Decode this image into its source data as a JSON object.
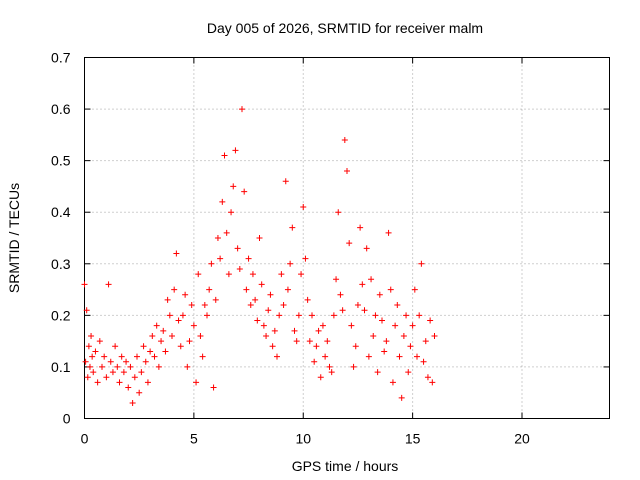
{
  "chart_data": {
    "type": "scatter",
    "title": "Day 005 of 2026, SRMTID for receiver malm",
    "xlabel": "GPS time / hours",
    "ylabel": "SRMTID / TECUs",
    "xlim": [
      0,
      24
    ],
    "ylim": [
      0,
      0.7
    ],
    "xticks": [
      0,
      5,
      10,
      15,
      20
    ],
    "xtick_labels": [
      "0",
      "5",
      "10",
      "15",
      "20"
    ],
    "yticks": [
      0,
      0.1,
      0.2,
      0.3,
      0.4,
      0.5,
      0.6,
      0.7
    ],
    "ytick_labels": [
      "0",
      "0.1",
      "0.2",
      "0.3",
      "0.4",
      "0.5",
      "0.6",
      "0.7"
    ],
    "grid": true,
    "marker": "+",
    "marker_color": "#ff0000",
    "series": [
      {
        "name": "SRMTID",
        "x": [
          0.0,
          0.05,
          0.1,
          0.15,
          0.2,
          0.25,
          0.3,
          0.35,
          0.4,
          0.5,
          0.6,
          0.7,
          0.8,
          0.9,
          1.0,
          1.1,
          1.2,
          1.3,
          1.4,
          1.5,
          1.6,
          1.7,
          1.8,
          1.9,
          2.0,
          2.1,
          2.2,
          2.3,
          2.4,
          2.5,
          2.6,
          2.7,
          2.8,
          2.9,
          3.0,
          3.1,
          3.2,
          3.3,
          3.4,
          3.5,
          3.6,
          3.7,
          3.8,
          3.9,
          4.0,
          4.1,
          4.2,
          4.3,
          4.4,
          4.5,
          4.6,
          4.7,
          4.8,
          4.9,
          5.0,
          5.1,
          5.2,
          5.3,
          5.4,
          5.5,
          5.6,
          5.7,
          5.8,
          5.9,
          6.0,
          6.1,
          6.2,
          6.3,
          6.4,
          6.5,
          6.6,
          6.7,
          6.8,
          6.9,
          7.0,
          7.1,
          7.2,
          7.3,
          7.4,
          7.5,
          7.6,
          7.7,
          7.8,
          7.9,
          8.0,
          8.1,
          8.2,
          8.3,
          8.4,
          8.5,
          8.6,
          8.7,
          8.8,
          8.9,
          9.0,
          9.1,
          9.2,
          9.3,
          9.4,
          9.5,
          9.6,
          9.7,
          9.8,
          9.9,
          10.0,
          10.1,
          10.2,
          10.3,
          10.4,
          10.5,
          10.6,
          10.7,
          10.8,
          10.9,
          11.0,
          11.1,
          11.2,
          11.3,
          11.4,
          11.5,
          11.6,
          11.7,
          11.8,
          11.9,
          12.0,
          12.1,
          12.2,
          12.3,
          12.4,
          12.5,
          12.6,
          12.7,
          12.8,
          12.9,
          13.0,
          13.1,
          13.2,
          13.3,
          13.4,
          13.5,
          13.6,
          13.7,
          13.8,
          13.9,
          14.0,
          14.1,
          14.2,
          14.3,
          14.4,
          14.5,
          14.6,
          14.7,
          14.8,
          14.9,
          15.0,
          15.1,
          15.2,
          15.3,
          15.4,
          15.5,
          15.6,
          15.7,
          15.8,
          15.9,
          16.0
        ],
        "y": [
          0.26,
          0.11,
          0.21,
          0.08,
          0.14,
          0.1,
          0.16,
          0.12,
          0.09,
          0.13,
          0.07,
          0.15,
          0.1,
          0.12,
          0.08,
          0.26,
          0.11,
          0.09,
          0.14,
          0.1,
          0.07,
          0.12,
          0.09,
          0.11,
          0.06,
          0.1,
          0.03,
          0.08,
          0.12,
          0.05,
          0.09,
          0.14,
          0.11,
          0.07,
          0.13,
          0.16,
          0.12,
          0.18,
          0.1,
          0.15,
          0.17,
          0.13,
          0.23,
          0.2,
          0.16,
          0.25,
          0.32,
          0.19,
          0.14,
          0.2,
          0.24,
          0.1,
          0.15,
          0.22,
          0.18,
          0.07,
          0.28,
          0.16,
          0.12,
          0.22,
          0.2,
          0.25,
          0.3,
          0.06,
          0.23,
          0.35,
          0.31,
          0.42,
          0.51,
          0.36,
          0.28,
          0.4,
          0.45,
          0.52,
          0.33,
          0.29,
          0.6,
          0.44,
          0.25,
          0.31,
          0.22,
          0.28,
          0.23,
          0.19,
          0.35,
          0.26,
          0.18,
          0.16,
          0.21,
          0.24,
          0.14,
          0.17,
          0.12,
          0.2,
          0.28,
          0.22,
          0.46,
          0.25,
          0.3,
          0.37,
          0.17,
          0.15,
          0.2,
          0.28,
          0.41,
          0.31,
          0.23,
          0.15,
          0.2,
          0.11,
          0.14,
          0.17,
          0.08,
          0.18,
          0.12,
          0.15,
          0.1,
          0.09,
          0.2,
          0.27,
          0.4,
          0.24,
          0.21,
          0.54,
          0.48,
          0.34,
          0.18,
          0.1,
          0.14,
          0.22,
          0.37,
          0.26,
          0.21,
          0.33,
          0.12,
          0.27,
          0.16,
          0.2,
          0.09,
          0.24,
          0.19,
          0.13,
          0.15,
          0.36,
          0.25,
          0.07,
          0.18,
          0.22,
          0.12,
          0.04,
          0.16,
          0.2,
          0.09,
          0.14,
          0.18,
          0.25,
          0.12,
          0.2,
          0.3,
          0.11,
          0.15,
          0.08,
          0.19,
          0.07,
          0.16
        ]
      }
    ]
  }
}
